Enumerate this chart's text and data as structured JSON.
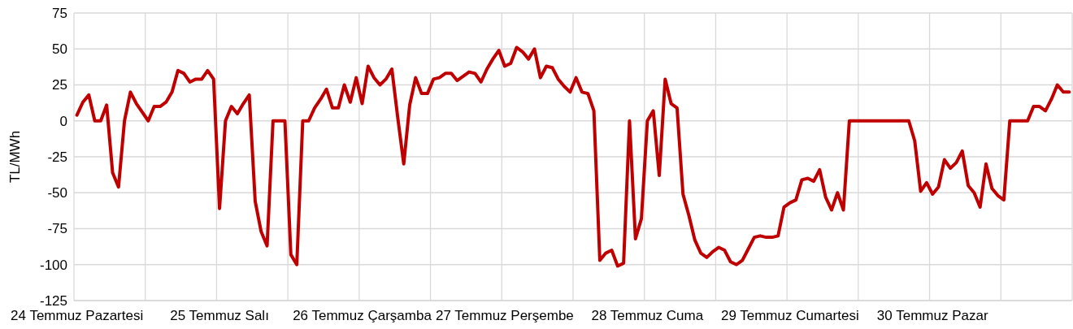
{
  "chart_data": {
    "type": "line",
    "ylabel": "TL/MWh",
    "categories": [
      "24 Temmuz Pazartesi",
      null,
      null,
      null,
      null,
      null,
      null,
      null,
      null,
      null,
      null,
      null,
      null,
      null,
      null,
      null,
      null,
      null,
      null,
      null,
      null,
      null,
      null,
      null,
      "25 Temmuz Salı",
      null,
      null,
      null,
      null,
      null,
      null,
      null,
      null,
      null,
      null,
      null,
      null,
      null,
      null,
      null,
      null,
      null,
      null,
      null,
      null,
      null,
      null,
      null,
      "26 Temmuz Çarşamba",
      null,
      null,
      null,
      null,
      null,
      null,
      null,
      null,
      null,
      null,
      null,
      null,
      null,
      null,
      null,
      null,
      null,
      null,
      null,
      null,
      null,
      null,
      null,
      "27 Temmuz Perşembe",
      null,
      null,
      null,
      null,
      null,
      null,
      null,
      null,
      null,
      null,
      null,
      null,
      null,
      null,
      null,
      null,
      null,
      null,
      null,
      null,
      null,
      null,
      null,
      "28 Temmuz Cuma",
      null,
      null,
      null,
      null,
      null,
      null,
      null,
      null,
      null,
      null,
      null,
      null,
      null,
      null,
      null,
      null,
      null,
      null,
      null,
      null,
      null,
      null,
      null,
      "29 Temmuz Cumartesi",
      null,
      null,
      null,
      null,
      null,
      null,
      null,
      null,
      null,
      null,
      null,
      null,
      null,
      null,
      null,
      null,
      null,
      null,
      null,
      null,
      null,
      null,
      null,
      "30 Temmuz Pazar",
      null,
      null,
      null,
      null,
      null,
      null,
      null,
      null,
      null,
      null,
      null,
      null,
      null,
      null,
      null,
      null,
      null,
      null,
      null,
      null,
      null,
      null,
      null
    ],
    "series": [
      {
        "color": "#c00000",
        "values": [
          4,
          13,
          18,
          0,
          0,
          11,
          -36,
          -46,
          0,
          20,
          12,
          6,
          0,
          10,
          10,
          13,
          20,
          35,
          33,
          27,
          29,
          29,
          35,
          29,
          -61,
          0,
          10,
          5,
          12,
          18,
          -56,
          -77,
          -87,
          0,
          0,
          0,
          -93,
          -100,
          0,
          0,
          9,
          15,
          22,
          9,
          9,
          25,
          13,
          30,
          12,
          38,
          30,
          25,
          29,
          36,
          2,
          -30,
          11,
          30,
          19,
          19,
          29,
          30,
          33,
          33,
          28,
          31,
          34,
          33,
          27,
          36,
          43,
          49,
          38,
          40,
          51,
          48,
          43,
          50,
          30,
          38,
          37,
          29,
          24,
          20,
          30,
          20,
          19,
          7,
          -97,
          -92,
          -90,
          -101,
          -99,
          0,
          -82,
          -68,
          0,
          7,
          -38,
          29,
          12,
          9,
          -51,
          -66,
          -83,
          -92,
          -95,
          -91,
          -88,
          -90,
          -98,
          -100,
          -97,
          -89,
          -81,
          -80,
          -81,
          -81,
          -80,
          -60,
          -57,
          -55,
          -41,
          -40,
          -42,
          -34,
          -53,
          -62,
          -50,
          -62,
          0,
          0,
          0,
          0,
          0,
          0,
          0,
          0,
          0,
          0,
          0,
          -14,
          -49,
          -43,
          -51,
          -46,
          -27,
          -33,
          -29,
          -21,
          -45,
          -50,
          -60,
          -30,
          -47,
          -52,
          -55,
          0,
          0,
          0,
          0,
          10,
          10,
          7,
          15,
          25,
          20,
          20
        ]
      }
    ],
    "ylim": [
      -125,
      75
    ],
    "yticks": [
      -125,
      -100,
      -75,
      -50,
      -25,
      0,
      25,
      50,
      75
    ],
    "grid": true
  }
}
